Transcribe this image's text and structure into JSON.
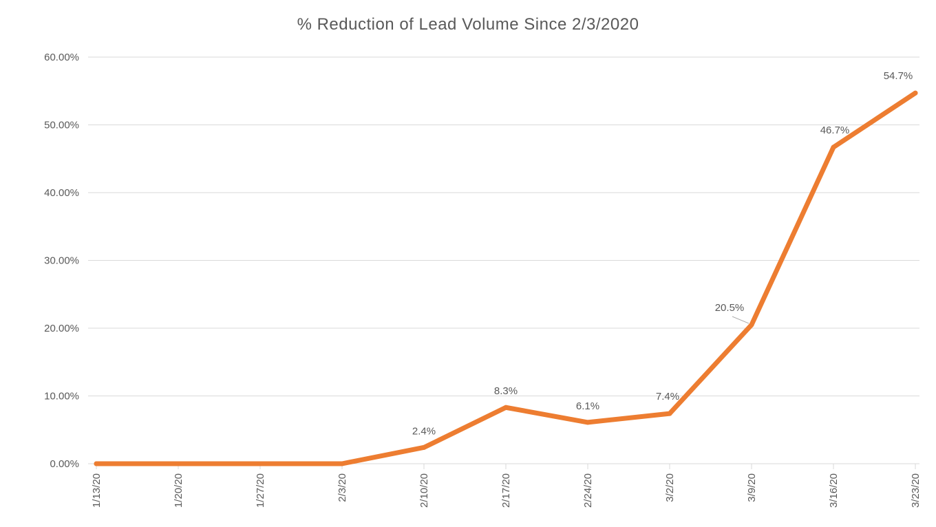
{
  "chart_data": {
    "type": "line",
    "title": "% Reduction  of Lead  Volume  Since  2/3/2020",
    "xlabel": "",
    "ylabel": "",
    "categories": [
      "1/13/20",
      "1/20/20",
      "1/27/20",
      "2/3/20",
      "2/10/20",
      "2/17/20",
      "2/24/20",
      "3/2/20",
      "3/9/20",
      "3/16/20",
      "3/23/20"
    ],
    "y_ticks": [
      "0.00%",
      "10.00%",
      "20.00%",
      "30.00%",
      "40.00%",
      "50.00%",
      "60.00%"
    ],
    "ylim": [
      0,
      60
    ],
    "grid": true,
    "legend": "none",
    "series": [
      {
        "values": [
          0,
          0,
          0,
          0,
          2.4,
          8.3,
          6.1,
          7.4,
          20.5,
          46.7,
          54.7
        ],
        "color": "#ed7d31"
      }
    ],
    "data_labels": [
      "",
      "",
      "",
      "",
      "2.4%",
      "8.3%",
      "6.1%",
      "7.4%",
      "20.5%",
      "46.7%",
      "54.7%"
    ]
  }
}
